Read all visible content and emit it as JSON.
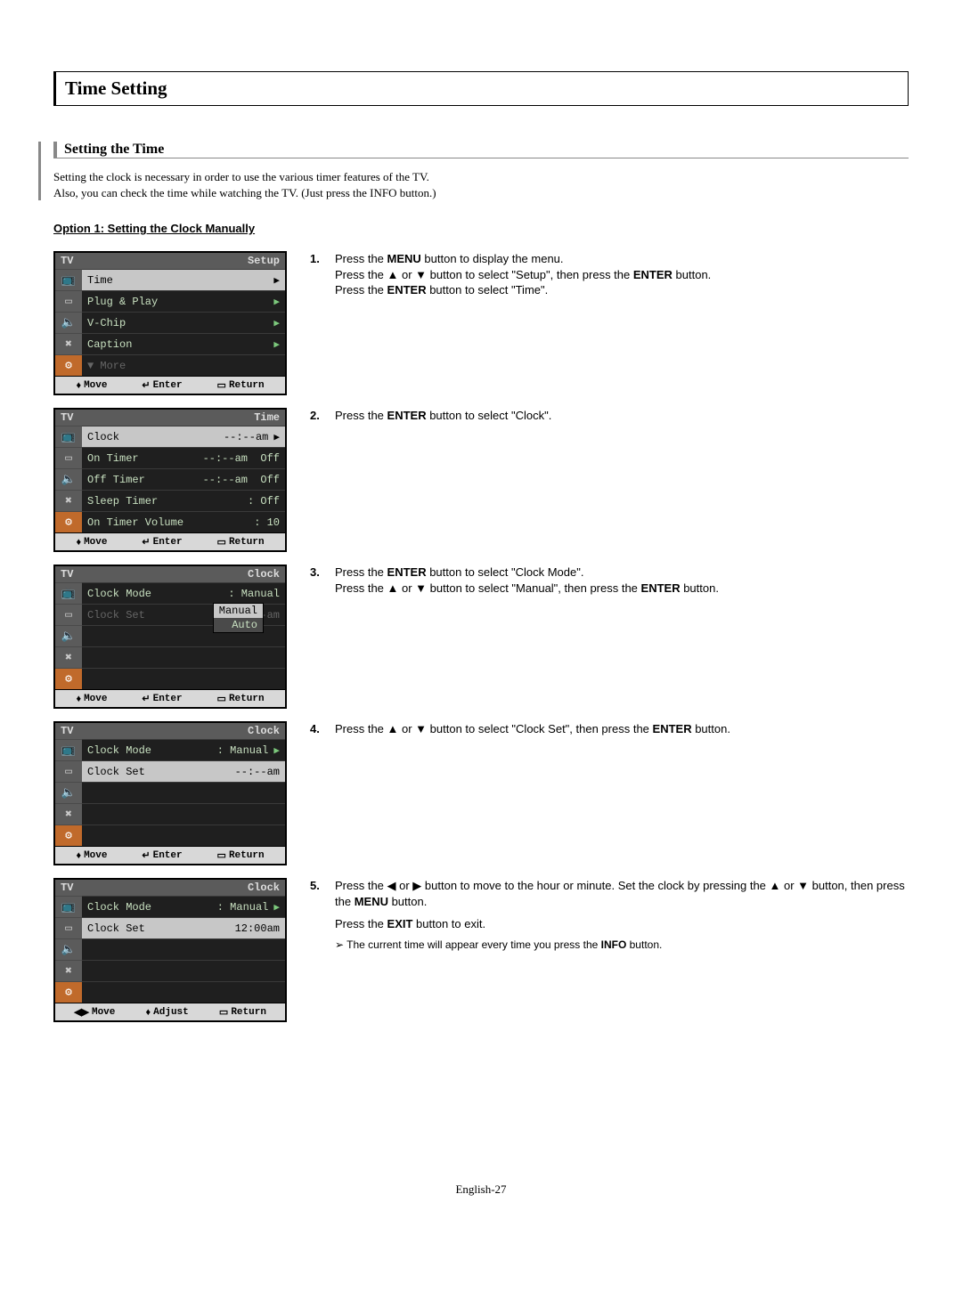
{
  "page_title": "Time Setting",
  "subheading": "Setting the Time",
  "intro_line1": "Setting the clock is necessary in order to use the various timer features of the TV.",
  "intro_line2": "Also, you can check the time while watching the TV. (Just press the INFO button.)",
  "option_title": "Option 1: Setting the Clock Manually",
  "page_num": "English-27",
  "osd_common": {
    "tv_label": "TV",
    "footer_move": "Move",
    "footer_enter": "Enter",
    "footer_return": "Return",
    "footer_adjust": "Adjust",
    "move_sym_ud": "♦",
    "move_sym_lr": "◀▶",
    "enter_sym": "↵",
    "return_sym": "▭"
  },
  "osd1": {
    "title": "Setup",
    "rows": [
      {
        "label": "Time",
        "val": "",
        "arrow": "▶",
        "selected": true
      },
      {
        "label": "Plug & Play",
        "val": "",
        "arrow": "▶"
      },
      {
        "label": "V-Chip",
        "val": "",
        "arrow": "▶"
      },
      {
        "label": "Caption",
        "val": "",
        "arrow": "▶"
      },
      {
        "label": "▼ More",
        "val": "",
        "dim": true
      }
    ]
  },
  "osd2": {
    "title": "Time",
    "rows": [
      {
        "label": "Clock",
        "val": "--:--am",
        "arrow": "▶",
        "selected": true
      },
      {
        "label": "On Timer",
        "val": "--:--am  Off"
      },
      {
        "label": "Off Timer",
        "val": "--:--am  Off"
      },
      {
        "label": "Sleep Timer",
        "val": ": Off"
      },
      {
        "label": "On Timer Volume",
        "val": ": 10"
      }
    ]
  },
  "osd3": {
    "title": "Clock",
    "rows": [
      {
        "label": "Clock Mode",
        "val": ": Manual",
        "selected_val": true,
        "dropdown": [
          "Manual",
          "Auto"
        ],
        "drop_sel": 0
      },
      {
        "label": "Clock Set",
        "val": "--:--am",
        "dim": true
      }
    ]
  },
  "osd4": {
    "title": "Clock",
    "rows": [
      {
        "label": "Clock Mode",
        "val": ": Manual",
        "arrow": "▶"
      },
      {
        "label": "Clock Set",
        "val": "--:--am",
        "selected": true
      }
    ]
  },
  "osd5": {
    "title": "Clock",
    "rows": [
      {
        "label": "Clock Mode",
        "val": ": Manual",
        "arrow": "▶"
      },
      {
        "label": "Clock Set",
        "val": "12:00am",
        "selected": true
      }
    ],
    "footer_lr": true
  },
  "steps": {
    "s1a": "Press the ",
    "s1b": "MENU",
    "s1c": " button to display the menu.",
    "s1d": "Press the ▲ or ▼ button to select \"Setup\", then press the ",
    "s1e": "ENTER",
    "s1f": " button.",
    "s1g": "Press the ",
    "s1h": "ENTER",
    "s1i": " button to select \"Time\".",
    "s2a": "Press the ",
    "s2b": "ENTER",
    "s2c": " button to select \"Clock\".",
    "s3a": "Press the ",
    "s3b": "ENTER",
    "s3c": " button to select \"Clock Mode\".",
    "s3d": "Press the ▲ or ▼ button to select \"Manual\", then press the ",
    "s3e": "ENTER",
    "s3f": " button.",
    "s4a": "Press the ▲ or ▼ button to select \"Clock Set\", then press the ",
    "s4b": "ENTER",
    "s4c": " button.",
    "s5a": "Press the ◀ or ▶ button to move to the hour or minute. Set the clock by pressing the ▲ or ▼ button, then press the ",
    "s5b": "MENU",
    "s5c": " button.",
    "s5d": "Press the ",
    "s5e": "EXIT",
    "s5f": " button to exit.",
    "s5note_a": "The current time will appear every time you press the ",
    "s5note_b": "INFO",
    "s5note_c": " button."
  }
}
